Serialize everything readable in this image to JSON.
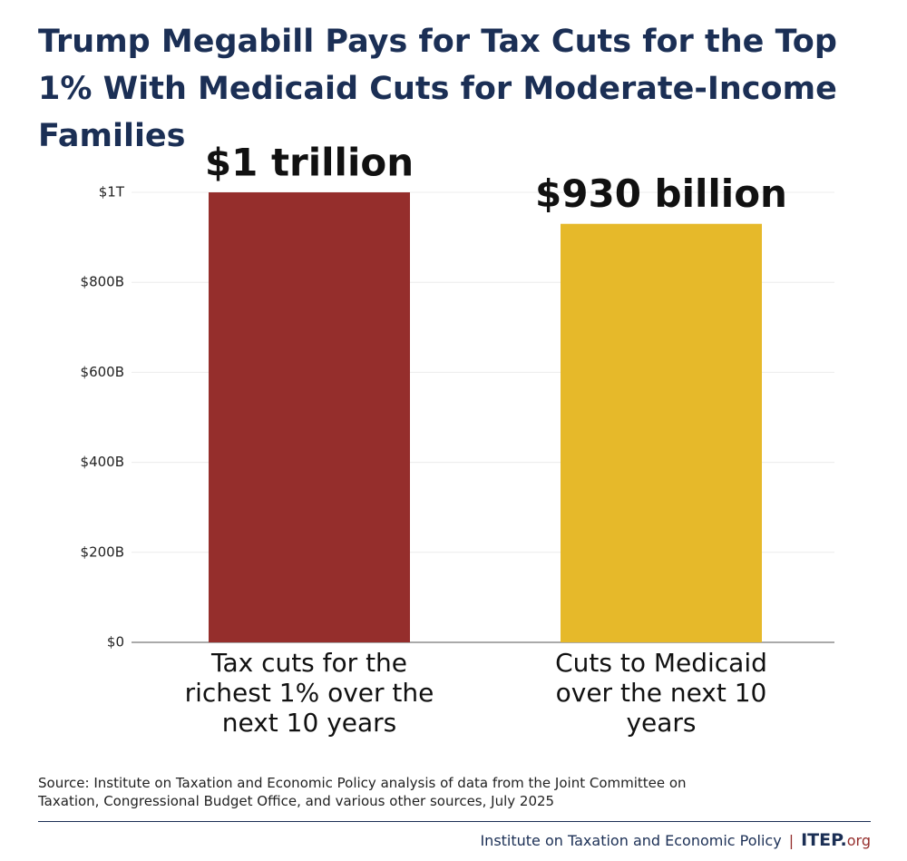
{
  "chart_data": {
    "type": "bar",
    "title": "Trump Megabill Pays for Tax Cuts for the Top 1% With Medicaid Cuts for Moderate-Income Families",
    "categories": [
      "Tax cuts for the richest 1% over the next 10 years",
      "Cuts to Medicaid over the next 10 years"
    ],
    "values": [
      1000000000000,
      930000000000
    ],
    "value_labels": [
      "$1 trillion",
      "$930 billion"
    ],
    "colors": [
      "#952e2c",
      "#e6b92a"
    ],
    "ylim": [
      0,
      1000000000000
    ],
    "yticks": [
      {
        "value": 0,
        "label": "$0"
      },
      {
        "value": 200000000000,
        "label": "$200B"
      },
      {
        "value": 400000000000,
        "label": "$400B"
      },
      {
        "value": 600000000000,
        "label": "$600B"
      },
      {
        "value": 800000000000,
        "label": "$800B"
      },
      {
        "value": 1000000000000,
        "label": "$1T"
      }
    ],
    "grid": true,
    "source": "Source: Institute on Taxation and Economic Policy analysis of data from the Joint Committee on Taxation, Congressional Budget Office, and various other sources, July 2025",
    "footer": "Institute on Taxation and Economic Policy",
    "logo": [
      "ITEP.",
      "org"
    ]
  }
}
